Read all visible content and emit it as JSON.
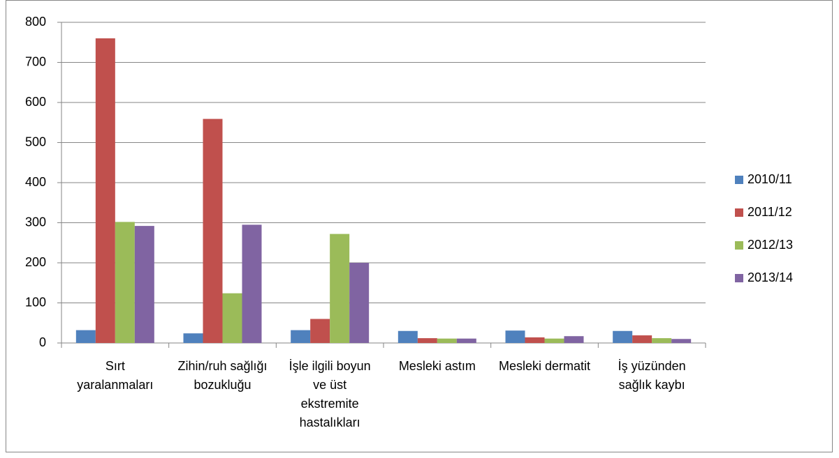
{
  "chart_data": {
    "type": "bar",
    "categories": [
      "Sırt yaralanmaları",
      "Zihin/ruh sağlığı bozukluğu",
      "İşle ilgili boyun ve üst ekstremite hastalıkları",
      "Mesleki astım",
      "Mesleki dermatit",
      "İş yüzünden sağlık kaybı"
    ],
    "series": [
      {
        "name": "2010/11",
        "color": "#4f81bd",
        "values": [
          32,
          24,
          32,
          30,
          31,
          30
        ]
      },
      {
        "name": "2011/12",
        "color": "#c0504d",
        "values": [
          760,
          559,
          60,
          12,
          14,
          19
        ]
      },
      {
        "name": "2012/13",
        "color": "#9bbb59",
        "values": [
          302,
          124,
          272,
          11,
          11,
          12
        ]
      },
      {
        "name": "2013/14",
        "color": "#8064a2",
        "values": [
          292,
          295,
          200,
          11,
          17,
          10
        ]
      }
    ],
    "ylim": [
      0,
      800
    ],
    "yticks": [
      0,
      100,
      200,
      300,
      400,
      500,
      600,
      700,
      800
    ],
    "grid": true,
    "legend": "right"
  }
}
